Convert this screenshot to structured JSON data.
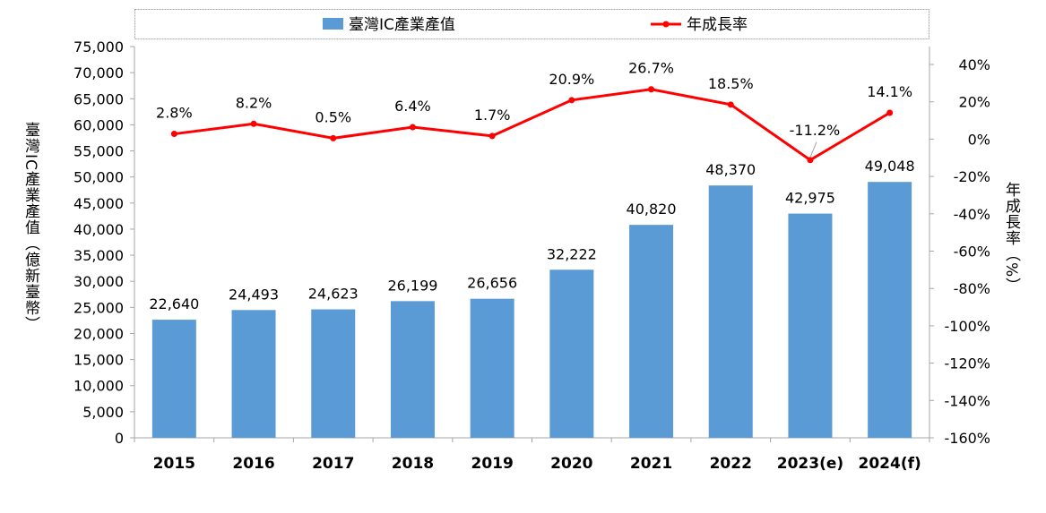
{
  "chart_data": {
    "type": "bar+line",
    "categories": [
      "2015",
      "2016",
      "2017",
      "2018",
      "2019",
      "2020",
      "2021",
      "2022",
      "2023(e)",
      "2024(f)"
    ],
    "series": [
      {
        "name": "臺灣IC產業產值",
        "type": "bar",
        "axis": "left",
        "color": "#5b9bd5",
        "values": [
          22640,
          24493,
          24623,
          26199,
          26656,
          32222,
          40820,
          48370,
          42975,
          49048
        ],
        "labels": [
          "22,640",
          "24,493",
          "24,623",
          "26,199",
          "26,656",
          "32,222",
          "40,820",
          "48,370",
          "42,975",
          "49,048"
        ]
      },
      {
        "name": "年成長率",
        "type": "line",
        "axis": "right",
        "color": "#ff0000",
        "values": [
          2.8,
          8.2,
          0.5,
          6.4,
          1.7,
          20.9,
          26.7,
          18.5,
          -11.2,
          14.1
        ],
        "labels": [
          "2.8%",
          "8.2%",
          "0.5%",
          "6.4%",
          "1.7%",
          "20.9%",
          "26.7%",
          "18.5%",
          "-11.2%",
          "14.1%"
        ]
      }
    ],
    "y_left": {
      "label": "臺灣IC產業產值（億新臺幣）",
      "range": [
        0,
        75000
      ],
      "ticks": [
        "0",
        "5,000",
        "10,000",
        "15,000",
        "20,000",
        "25,000",
        "30,000",
        "35,000",
        "40,000",
        "45,000",
        "50,000",
        "55,000",
        "60,000",
        "65,000",
        "70,000",
        "75,000"
      ]
    },
    "y_right": {
      "label": "年成長率（%）",
      "range": [
        -160,
        50
      ],
      "ticks": [
        "-160%",
        "-140%",
        "-120%",
        "-100%",
        "-80%",
        "-60%",
        "-40%",
        "-20%",
        "0%",
        "20%",
        "40%"
      ]
    },
    "legend": {
      "position": "top",
      "entries": [
        "臺灣IC產業產值",
        "年成長率"
      ]
    },
    "grid": false
  }
}
